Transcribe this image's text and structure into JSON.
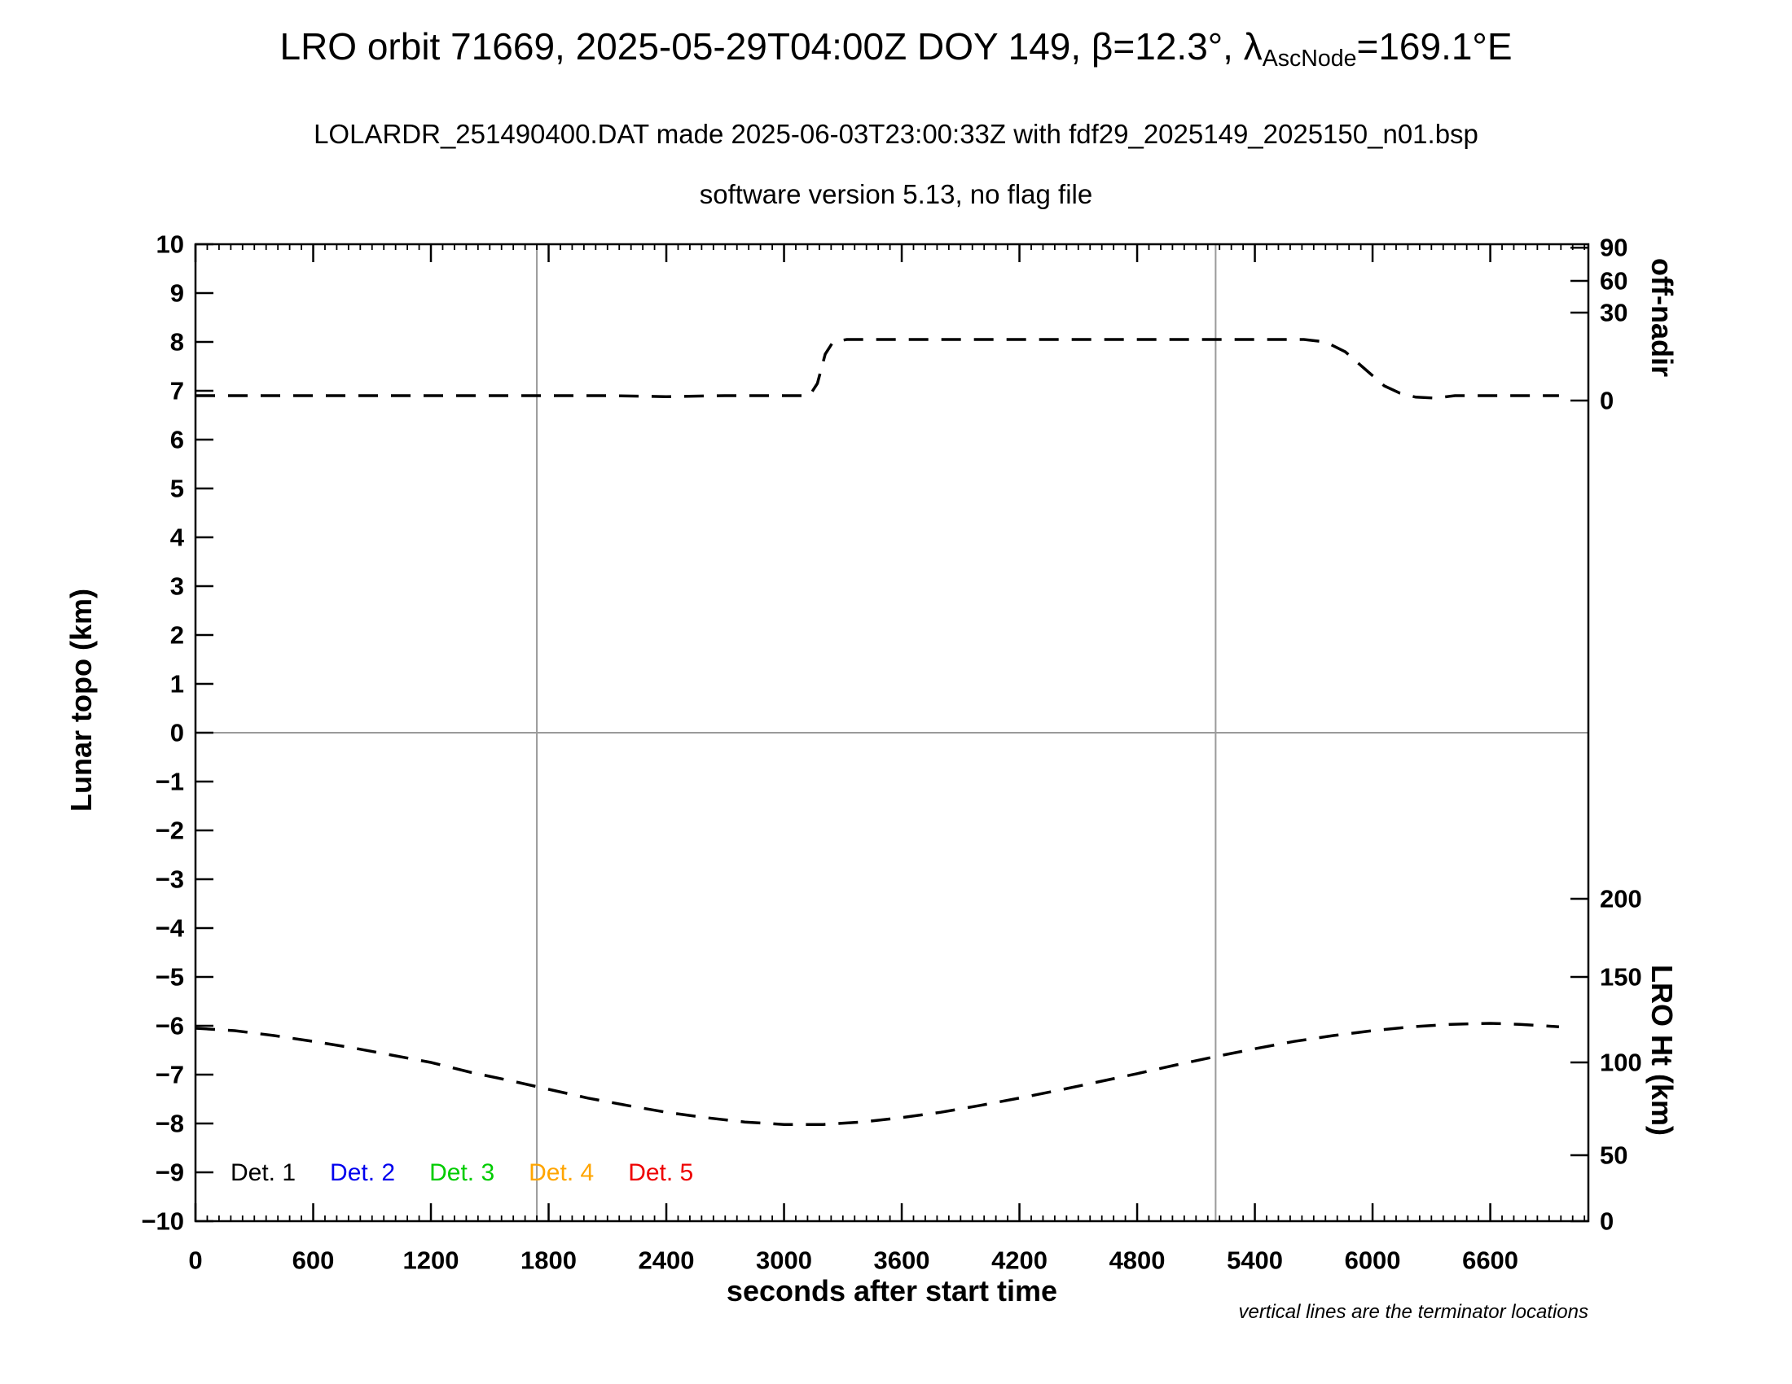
{
  "title": {
    "line1_pre": "LRO orbit 71669, 2025-05-29T04:00Z DOY 149, β=12.3°, λ",
    "line1_sub": "AscNode",
    "line1_post": "=169.1°E",
    "line2": "LOLARDR_251490400.DAT made 2025-06-03T23:00:33Z with fdf29_2025149_2025150_n01.bsp",
    "line3": "software version 5.13, no flag file"
  },
  "legend": {
    "items": [
      {
        "label": "Det. 1",
        "color": "#000000"
      },
      {
        "label": "Det. 2",
        "color": "#0000ee"
      },
      {
        "label": "Det. 3",
        "color": "#00cc00"
      },
      {
        "label": "Det. 4",
        "color": "#ffa500"
      },
      {
        "label": "Det. 5",
        "color": "#ee0000"
      }
    ]
  },
  "footnote": "vertical lines are the terminator locations",
  "chart_data": {
    "type": "line",
    "title": "LRO orbit 71669, 2025-05-29T04:00Z DOY 149, β=12.3°, λ_AscNode=169.1°E",
    "subtitle": "LOLARDR_251490400.DAT made 2025-06-03T23:00:33Z with fdf29_2025149_2025150_n01.bsp",
    "subtitle2": "software version 5.13, no flag file",
    "xlabel": "seconds after start time",
    "ylabel_left": "Lunar topo (km)",
    "ylabel_right_top": "off-nadir",
    "ylabel_right_bottom": "LRO Ht (km)",
    "xlim": [
      0,
      7100
    ],
    "ylim_left": [
      -10,
      10
    ],
    "x_ticks": [
      0,
      600,
      1200,
      1800,
      2400,
      3000,
      3600,
      4200,
      4800,
      5400,
      6000,
      6600
    ],
    "x_minor_step": 60,
    "y_ticks_left": [
      -10,
      -9,
      -8,
      -7,
      -6,
      -5,
      -4,
      -3,
      -2,
      -1,
      0,
      1,
      2,
      3,
      4,
      5,
      6,
      7,
      8,
      9,
      10
    ],
    "right_axis_top_ticks": [
      {
        "label": "90",
        "y_topo": 9.93
      },
      {
        "label": "60",
        "y_topo": 9.25
      },
      {
        "label": "30",
        "y_topo": 8.6
      },
      {
        "label": "0",
        "y_topo": 6.8
      }
    ],
    "right_axis_bottom_ticks": [
      {
        "label": "200",
        "y_topo": -3.4
      },
      {
        "label": "150",
        "y_topo": -5.0
      },
      {
        "label": "100",
        "y_topo": -6.75
      },
      {
        "label": "50",
        "y_topo": -8.65
      },
      {
        "label": "0",
        "y_topo": -10.0
      }
    ],
    "terminator_lines_x": [
      1740,
      5200
    ],
    "zero_line_y": 0,
    "grid_color": "#9a9a9a",
    "legend_position": "bottom-left inside plot",
    "grid": "off (only zero line and two terminator lines)",
    "series": [
      {
        "name": "off-nadir angle",
        "axis": "right-top",
        "style": "dashed",
        "color": "#000000",
        "units": "x in seconds, y plotted in lunar-topo km coordinates",
        "summary": "≈0° off-nadir (plotted near topo 6.9) until ~3150 s, slews up to ≈20° (plotted at topo 8.05) until ~5750 s, then returns to ≈0° with a small undershoot near 6250 s",
        "points": [
          [
            0,
            6.9
          ],
          [
            300,
            6.9
          ],
          [
            600,
            6.9
          ],
          [
            900,
            6.9
          ],
          [
            1200,
            6.9
          ],
          [
            1500,
            6.9
          ],
          [
            1800,
            6.9
          ],
          [
            2100,
            6.9
          ],
          [
            2400,
            6.88
          ],
          [
            2700,
            6.9
          ],
          [
            3000,
            6.9
          ],
          [
            3130,
            6.9
          ],
          [
            3170,
            7.15
          ],
          [
            3210,
            7.75
          ],
          [
            3250,
            8.0
          ],
          [
            3320,
            8.05
          ],
          [
            3600,
            8.05
          ],
          [
            3900,
            8.05
          ],
          [
            4200,
            8.05
          ],
          [
            4500,
            8.05
          ],
          [
            4800,
            8.05
          ],
          [
            5100,
            8.05
          ],
          [
            5400,
            8.05
          ],
          [
            5650,
            8.05
          ],
          [
            5760,
            8.0
          ],
          [
            5860,
            7.8
          ],
          [
            5960,
            7.45
          ],
          [
            6060,
            7.1
          ],
          [
            6140,
            6.95
          ],
          [
            6220,
            6.87
          ],
          [
            6320,
            6.85
          ],
          [
            6420,
            6.9
          ],
          [
            6600,
            6.9
          ],
          [
            6800,
            6.9
          ],
          [
            6950,
            6.9
          ]
        ]
      },
      {
        "name": "LRO height",
        "axis": "right-bottom",
        "style": "dashed",
        "color": "#000000",
        "units": "x in seconds, y plotted in lunar-topo km coordinates",
        "summary": "≈118 km at start (plotted near topo −6.05), minimum ≈58 km near 3000 s (topo ≈ −8.0), rising back to ≈122 km near 6600 s",
        "points": [
          [
            0,
            -6.05
          ],
          [
            200,
            -6.1
          ],
          [
            400,
            -6.2
          ],
          [
            600,
            -6.32
          ],
          [
            800,
            -6.45
          ],
          [
            1000,
            -6.6
          ],
          [
            1200,
            -6.75
          ],
          [
            1400,
            -6.95
          ],
          [
            1600,
            -7.12
          ],
          [
            1800,
            -7.3
          ],
          [
            2000,
            -7.48
          ],
          [
            2200,
            -7.63
          ],
          [
            2400,
            -7.77
          ],
          [
            2600,
            -7.88
          ],
          [
            2800,
            -7.97
          ],
          [
            3000,
            -8.02
          ],
          [
            3200,
            -8.02
          ],
          [
            3400,
            -7.97
          ],
          [
            3600,
            -7.88
          ],
          [
            3800,
            -7.77
          ],
          [
            4000,
            -7.63
          ],
          [
            4200,
            -7.48
          ],
          [
            4400,
            -7.32
          ],
          [
            4600,
            -7.15
          ],
          [
            4800,
            -6.98
          ],
          [
            5000,
            -6.8
          ],
          [
            5200,
            -6.63
          ],
          [
            5400,
            -6.47
          ],
          [
            5600,
            -6.32
          ],
          [
            5800,
            -6.2
          ],
          [
            6000,
            -6.1
          ],
          [
            6200,
            -6.02
          ],
          [
            6400,
            -5.97
          ],
          [
            6600,
            -5.95
          ],
          [
            6750,
            -5.97
          ],
          [
            6950,
            -6.02
          ]
        ]
      }
    ]
  }
}
